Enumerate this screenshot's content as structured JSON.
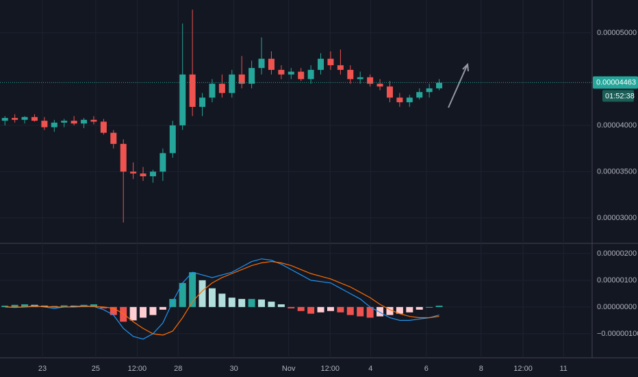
{
  "chart_data": [
    {
      "type": "candlestick",
      "colors": {
        "up": "#26a69a",
        "down": "#ef5350",
        "grid": "#1f2330",
        "text": "#b2b5be",
        "last": "#26a69a"
      },
      "xlim": [
        0,
        120
      ],
      "xticks": [
        {
          "value": 8.6,
          "label": "23"
        },
        {
          "value": 19.4,
          "label": "25"
        },
        {
          "value": 27.8,
          "label": "12:00"
        },
        {
          "value": 36.1,
          "label": "28"
        },
        {
          "value": 47.4,
          "label": "30"
        },
        {
          "value": 58.5,
          "label": "Nov"
        },
        {
          "value": 66.9,
          "label": "12:00"
        },
        {
          "value": 75.1,
          "label": "4"
        },
        {
          "value": 86.4,
          "label": "6"
        },
        {
          "value": 97.5,
          "label": "8"
        },
        {
          "value": 106,
          "label": "12:00"
        },
        {
          "value": 114.2,
          "label": "11"
        }
      ],
      "ylim": [
        2.74e-05,
        5.355e-05
      ],
      "yticks": [
        {
          "value": 3e-05,
          "label": "0.00003000"
        },
        {
          "value": 3.5e-05,
          "label": "0.00003500"
        },
        {
          "value": 4e-05,
          "label": "0.00004000"
        },
        {
          "value": 5e-05,
          "label": "0.00005000"
        }
      ],
      "last_price": {
        "value": 4.463e-05,
        "label": "0.00004463"
      },
      "countdown": "01:52:38",
      "candles": {
        "x": [
          1,
          3,
          5,
          7,
          9,
          11,
          13,
          15,
          17,
          19,
          21,
          23,
          25,
          27,
          29,
          31,
          33,
          35,
          37,
          39,
          41,
          43,
          45,
          47,
          49,
          51,
          53,
          55,
          57,
          59,
          61,
          63,
          65,
          67,
          69,
          71,
          73,
          75,
          77,
          79,
          81,
          83,
          85,
          87,
          89
        ],
        "open": [
          4.05e-05,
          4.08e-05,
          4.06e-05,
          4.09e-05,
          4.05e-05,
          3.98e-05,
          4.03e-05,
          4.05e-05,
          4.02e-05,
          4.06e-05,
          4.04e-05,
          3.92e-05,
          3.8e-05,
          3.5e-05,
          3.48e-05,
          3.45e-05,
          3.5e-05,
          3.7e-05,
          4e-05,
          4.55e-05,
          4.2e-05,
          4.3e-05,
          4.45e-05,
          4.35e-05,
          4.55e-05,
          4.45e-05,
          4.62e-05,
          4.72e-05,
          4.6e-05,
          4.55e-05,
          4.58e-05,
          4.5e-05,
          4.6e-05,
          4.72e-05,
          4.65e-05,
          4.6e-05,
          4.5e-05,
          4.52e-05,
          4.45e-05,
          4.42e-05,
          4.3e-05,
          4.25e-05,
          4.3e-05,
          4.36e-05,
          4.4e-05
        ],
        "high": [
          4.1e-05,
          4.12e-05,
          4.1e-05,
          4.12e-05,
          4.09e-05,
          4.06e-05,
          4.07e-05,
          4.1e-05,
          4.08e-05,
          4.1e-05,
          4.07e-05,
          3.95e-05,
          3.85e-05,
          3.6e-05,
          3.55e-05,
          3.52e-05,
          3.75e-05,
          4.05e-05,
          5.1e-05,
          5.25e-05,
          4.35e-05,
          4.5e-05,
          4.55e-05,
          4.6e-05,
          4.75e-05,
          4.7e-05,
          4.95e-05,
          4.8e-05,
          4.65e-05,
          4.62e-05,
          4.62e-05,
          4.65e-05,
          4.78e-05,
          4.8e-05,
          4.82e-05,
          4.65e-05,
          4.58e-05,
          4.55e-05,
          4.5e-05,
          4.48e-05,
          4.35e-05,
          4.33e-05,
          4.4e-05,
          4.45e-05,
          4.5e-05
        ],
        "low": [
          4e-05,
          4.03e-05,
          4.02e-05,
          4.04e-05,
          3.95e-05,
          3.93e-05,
          3.98e-05,
          4e-05,
          3.97e-05,
          4.01e-05,
          3.9e-05,
          3.75e-05,
          2.95e-05,
          3.42e-05,
          3.4e-05,
          3.38e-05,
          3.4e-05,
          3.65e-05,
          3.95e-05,
          4.1e-05,
          4.1e-05,
          4.25e-05,
          4.3e-05,
          4.3e-05,
          4.4e-05,
          4.4e-05,
          4.55e-05,
          4.55e-05,
          4.5e-05,
          4.5e-05,
          4.48e-05,
          4.45e-05,
          4.55e-05,
          4.6e-05,
          4.55e-05,
          4.45e-05,
          4.45e-05,
          4.42e-05,
          4.38e-05,
          4.25e-05,
          4.2e-05,
          4.2e-05,
          4.28e-05,
          4.3e-05,
          4.38e-05
        ],
        "close": [
          4.08e-05,
          4.06e-05,
          4.09e-05,
          4.05e-05,
          3.98e-05,
          4.03e-05,
          4.05e-05,
          4.02e-05,
          4.06e-05,
          4.04e-05,
          3.92e-05,
          3.8e-05,
          3.5e-05,
          3.48e-05,
          3.45e-05,
          3.5e-05,
          3.7e-05,
          4e-05,
          4.55e-05,
          4.2e-05,
          4.3e-05,
          4.45e-05,
          4.35e-05,
          4.55e-05,
          4.45e-05,
          4.62e-05,
          4.72e-05,
          4.6e-05,
          4.55e-05,
          4.58e-05,
          4.5e-05,
          4.6e-05,
          4.72e-05,
          4.65e-05,
          4.6e-05,
          4.5e-05,
          4.52e-05,
          4.45e-05,
          4.42e-05,
          4.3e-05,
          4.25e-05,
          4.3e-05,
          4.36e-05,
          4.4e-05,
          4.46e-05
        ]
      }
    },
    {
      "type": "macd",
      "colors": {
        "up_strong": "#26a69a",
        "up_weak": "#b2dfdb",
        "down_strong": "#ef5350",
        "down_weak": "#ffcdd2",
        "macd": "#2196f3",
        "signal": "#ff6d00"
      },
      "ylim": [
        -1.9e-06,
        2.33e-06
      ],
      "yticks": [
        {
          "value": 2e-06,
          "label": "0.00000200"
        },
        {
          "value": 1e-06,
          "label": "0.00000100"
        },
        {
          "value": 0,
          "label": "0.00000000"
        },
        {
          "value": -1e-06,
          "label": "−0.00000100"
        }
      ],
      "histogram": [
        5e-08,
        8e-08,
        1e-07,
        8e-08,
        5e-08,
        3e-08,
        6e-08,
        5e-08,
        8e-08,
        1e-07,
        -5e-08,
        -3e-07,
        -5.5e-07,
        -5e-07,
        -4e-07,
        -3e-07,
        -1e-07,
        3e-07,
        9e-07,
        1.3e-06,
        1e-06,
        7e-07,
        5e-07,
        3.5e-07,
        3e-07,
        3e-07,
        2.8e-07,
        2e-07,
        1e-07,
        -5e-08,
        -1.5e-07,
        -2.5e-07,
        -2e-07,
        -1.5e-07,
        -2e-07,
        -3e-07,
        -3.5e-07,
        -4e-07,
        -3.5e-07,
        -3e-07,
        -2.5e-07,
        -2e-07,
        -1e-07,
        0,
        5e-08
      ],
      "macd": [
        0,
        -2e-08,
        0,
        5e-08,
        0,
        -5e-08,
        0,
        2e-08,
        5e-08,
        2e-08,
        -1e-07,
        -3e-07,
        -8e-07,
        -1.1e-06,
        -1.2e-06,
        -1e-06,
        -6e-07,
        2e-07,
        9e-07,
        1.3e-06,
        1.2e-06,
        1.1e-06,
        1.2e-06,
        1.3e-06,
        1.5e-06,
        1.7e-06,
        1.8e-06,
        1.75e-06,
        1.6e-06,
        1.4e-06,
        1.2e-06,
        1e-06,
        9.5e-07,
        9e-07,
        7e-07,
        5e-07,
        3e-07,
        0,
        -2e-07,
        -4e-07,
        -5e-07,
        -5e-07,
        -4.5e-07,
        -4e-07,
        -3e-07
      ],
      "signal": [
        0,
        0,
        0,
        2e-08,
        2e-08,
        0,
        0,
        0,
        2e-08,
        2e-08,
        0,
        -5e-08,
        -2.5e-07,
        -5.5e-07,
        -8e-07,
        -1e-06,
        -1.05e-06,
        -9e-07,
        -4e-07,
        2e-07,
        6e-07,
        9e-07,
        1.1e-06,
        1.25e-06,
        1.4e-06,
        1.55e-06,
        1.65e-06,
        1.7e-06,
        1.65e-06,
        1.55e-06,
        1.4e-06,
        1.25e-06,
        1.15e-06,
        1.05e-06,
        9e-07,
        7.5e-07,
        5.5e-07,
        3.5e-07,
        1e-07,
        -1e-07,
        -2.5e-07,
        -3.5e-07,
        -4e-07,
        -4e-07,
        -3.5e-07
      ]
    }
  ]
}
